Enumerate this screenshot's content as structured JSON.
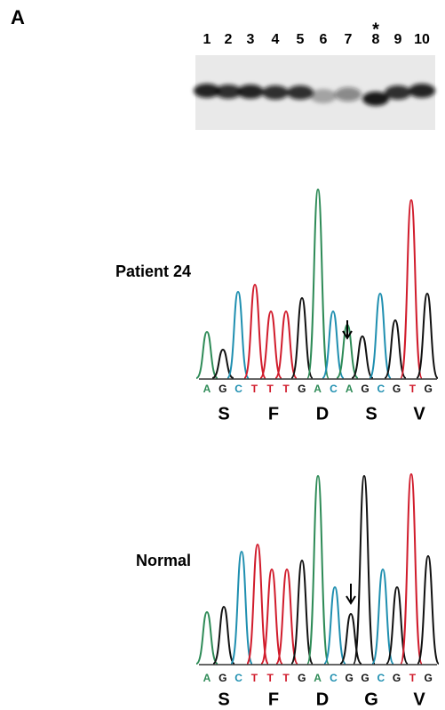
{
  "panel_label": "A",
  "gel": {
    "lanes": [
      "1",
      "2",
      "3",
      "4",
      "5",
      "6",
      "7",
      "8",
      "9",
      "10"
    ],
    "marker": "*"
  },
  "patient": {
    "label": "Patient 24",
    "sequence": [
      "A",
      "G",
      "C",
      "T",
      "T",
      "T",
      "G",
      "A",
      "C",
      "A",
      "G",
      "C",
      "G",
      "T",
      "G"
    ],
    "amino_acids": [
      "S",
      "F",
      "D",
      "S",
      "V"
    ]
  },
  "normal": {
    "label": "Normal",
    "sequence": [
      "A",
      "G",
      "C",
      "T",
      "T",
      "T",
      "G",
      "A",
      "C",
      "G",
      "G",
      "C",
      "G",
      "T",
      "G"
    ],
    "amino_acids": [
      "S",
      "F",
      "D",
      "G",
      "V"
    ]
  }
}
